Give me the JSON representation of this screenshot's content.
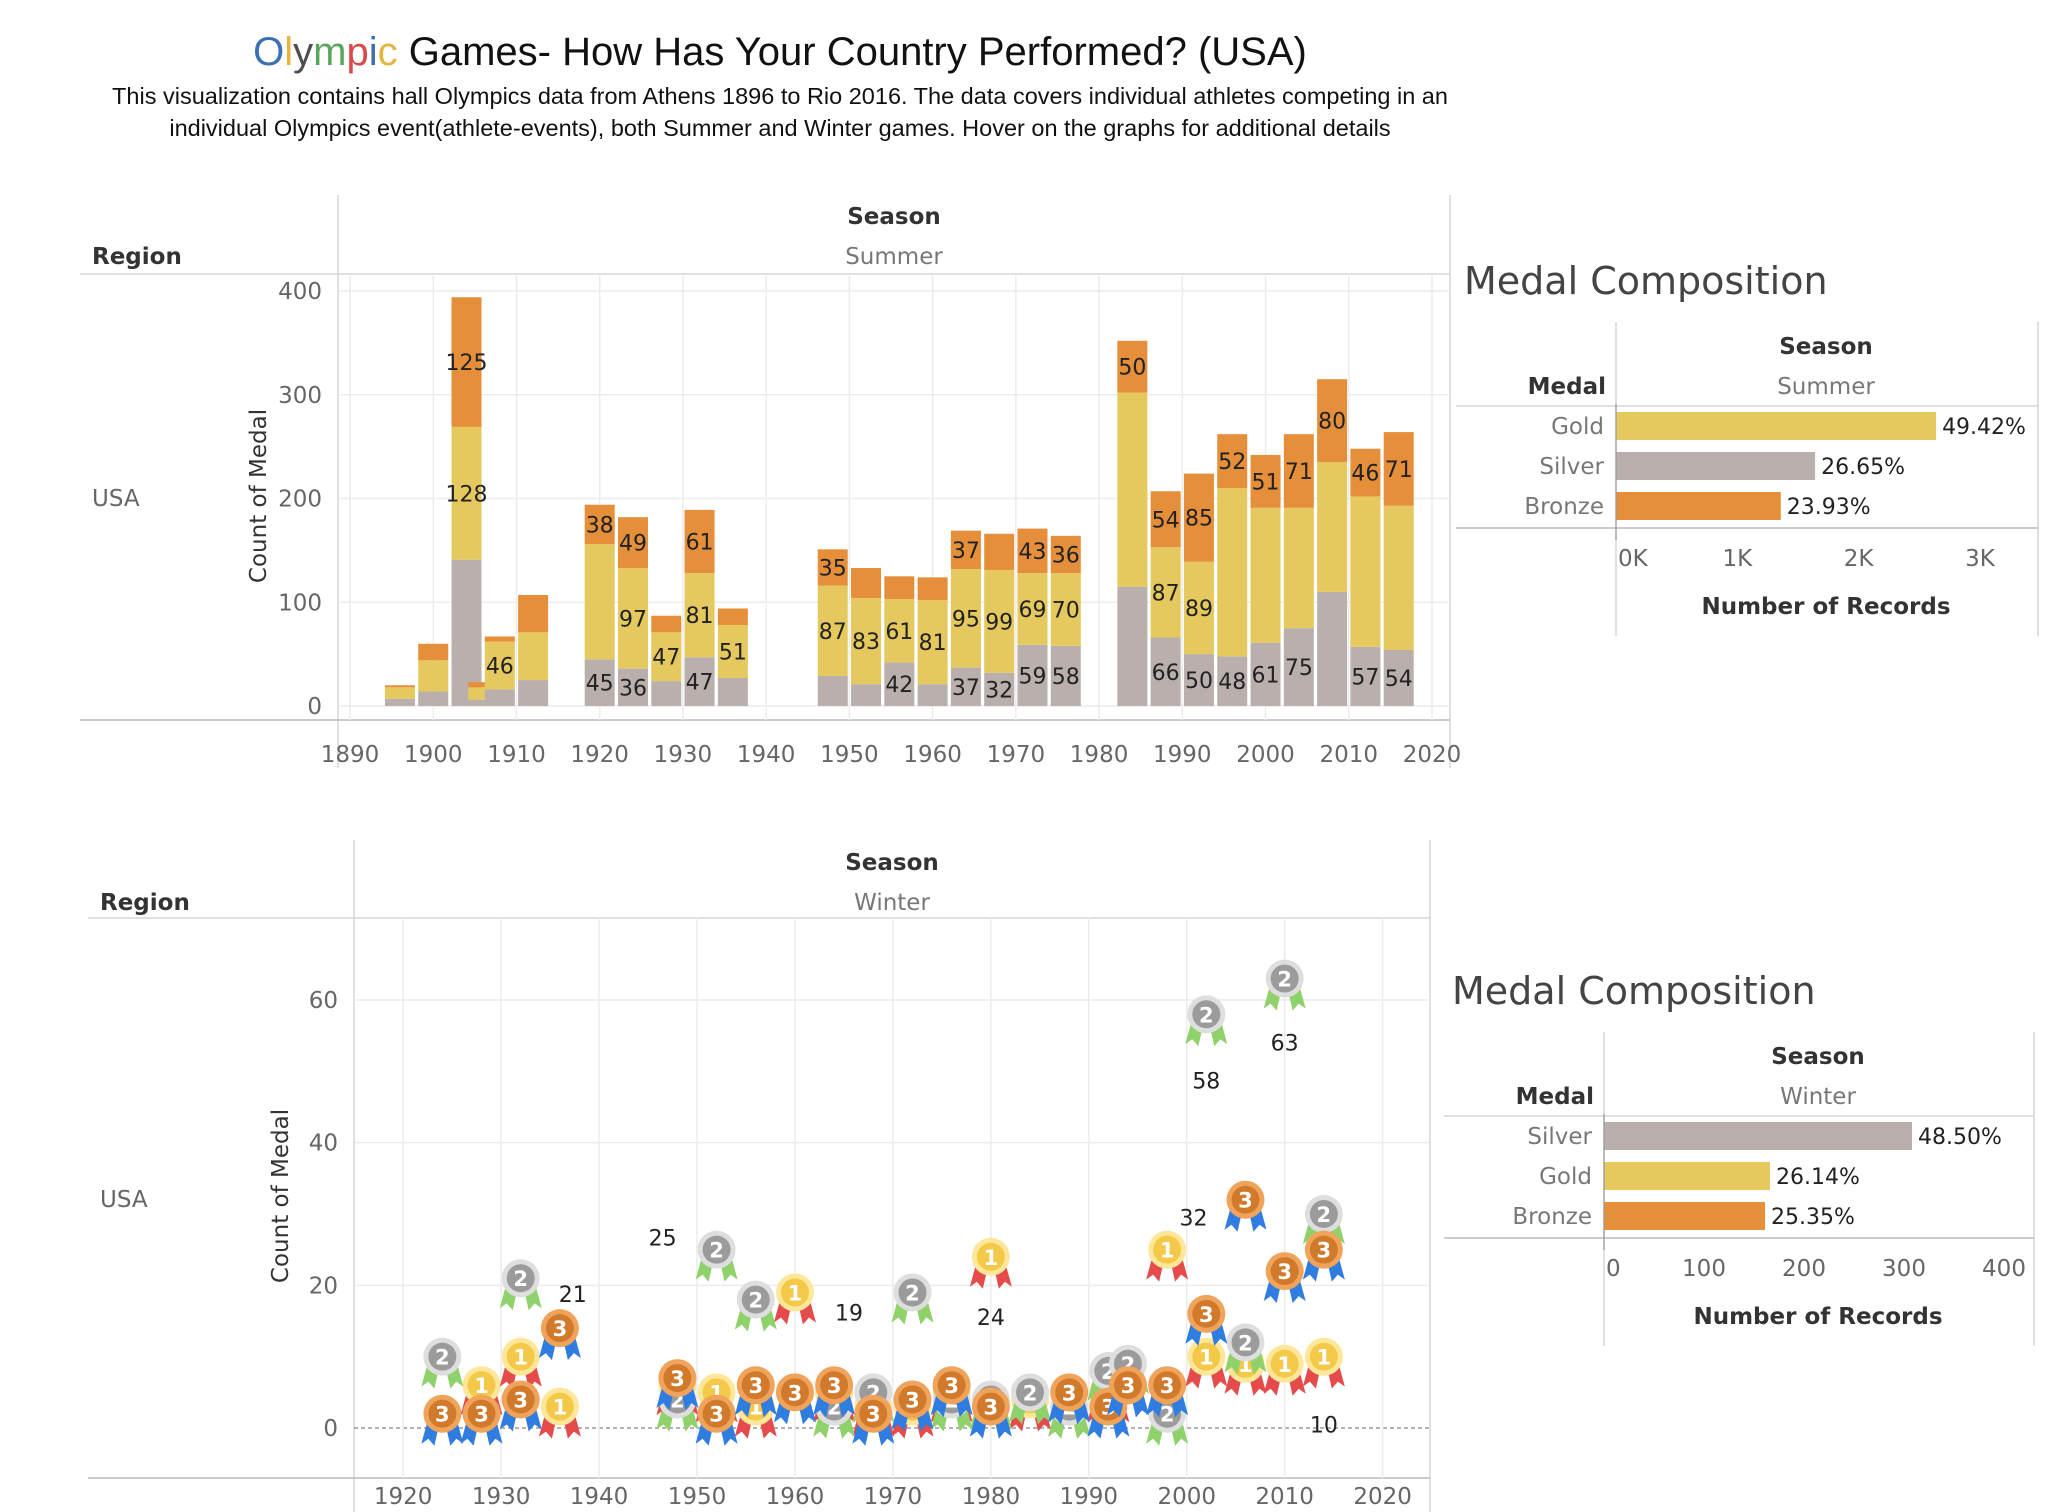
{
  "title": {
    "colored_word_letters": [
      {
        "ch": "O",
        "color": "#3b6fb6"
      },
      {
        "ch": "l",
        "color": "#e8b53c"
      },
      {
        "ch": "y",
        "color": "#4d4d4d"
      },
      {
        "ch": "m",
        "color": "#58a55c"
      },
      {
        "ch": "p",
        "color": "#d94b4b"
      },
      {
        "ch": "i",
        "color": "#3b6fb6"
      },
      {
        "ch": "c",
        "color": "#e8b53c"
      }
    ],
    "rest": " Games- How Has Your Country Performed? (USA)",
    "subtitle": "This visualization contains hall Olympics data from Athens 1896 to Rio 2016. The data covers individual athletes competing in an individual Olympics event(athlete-events), both Summer and Winter games. Hover on the graphs for additional details"
  },
  "colors": {
    "gold": "#e5c95e",
    "silver": "#b9b0ad",
    "bronze": "#e58f3b",
    "grid": "#ececec",
    "axis_text": "#666666",
    "header_text": "#333333"
  },
  "summer_panel": {
    "region_header": "Region",
    "season_header": "Season",
    "season_value": "Summer",
    "row_label": "USA",
    "y_axis_title": "Count of Medal"
  },
  "winter_panel": {
    "region_header": "Region",
    "season_header": "Season",
    "season_value": "Winter",
    "row_label": "USA",
    "y_axis_title": "Count of Medal"
  },
  "summer_composition": {
    "title": "Medal Composition",
    "season_header": "Season",
    "season_value": "Summer",
    "medal_header": "Medal",
    "axis_title": "Number of Records",
    "tick_labels": [
      "0K",
      "1K",
      "2K",
      "3K"
    ],
    "xlim": [
      0,
      3000
    ],
    "bars": [
      {
        "medal": "Gold",
        "value": 2638,
        "pct": "49.42%",
        "color_key": "gold"
      },
      {
        "medal": "Silver",
        "value": 1641,
        "pct": "26.65%",
        "color_key": "silver"
      },
      {
        "medal": "Bronze",
        "value": 1358,
        "pct": "23.93%",
        "color_key": "bronze"
      }
    ]
  },
  "winter_composition": {
    "title": "Medal Composition",
    "season_header": "Season",
    "season_value": "Winter",
    "medal_header": "Medal",
    "axis_title": "Number of Records",
    "tick_labels": [
      "0",
      "100",
      "200",
      "300",
      "400"
    ],
    "xlim": [
      0,
      400
    ],
    "bars": [
      {
        "medal": "Silver",
        "value": 308,
        "pct": "48.50%",
        "color_key": "silver"
      },
      {
        "medal": "Gold",
        "value": 166,
        "pct": "26.14%",
        "color_key": "gold"
      },
      {
        "medal": "Bronze",
        "value": 161,
        "pct": "25.35%",
        "color_key": "bronze"
      }
    ]
  },
  "chart_data": [
    {
      "type": "bar",
      "stacked": true,
      "title": "Summer",
      "xlabel": "",
      "ylabel": "Count of Medal",
      "xlim": [
        1890,
        2020
      ],
      "ylim": [
        0,
        400
      ],
      "x_ticks": [
        1890,
        1900,
        1910,
        1920,
        1930,
        1940,
        1950,
        1960,
        1970,
        1980,
        1990,
        2000,
        2010,
        2020
      ],
      "y_ticks": [
        0,
        100,
        200,
        300,
        400
      ],
      "grid": true,
      "years": [
        1896,
        1900,
        1904,
        1906,
        1908,
        1912,
        1920,
        1924,
        1928,
        1932,
        1936,
        1948,
        1952,
        1956,
        1960,
        1964,
        1968,
        1972,
        1976,
        1984,
        1988,
        1992,
        1996,
        2000,
        2004,
        2008,
        2012,
        2016
      ],
      "series": [
        {
          "color_key": "silver",
          "values": [
            7,
            14,
            141,
            6,
            16,
            25,
            45,
            36,
            24,
            47,
            27,
            29,
            21,
            42,
            21,
            37,
            32,
            59,
            58,
            115,
            66,
            50,
            48,
            61,
            75,
            110,
            57,
            54
          ],
          "labels": [
            "",
            "",
            "",
            "",
            "",
            "",
            "45",
            "36",
            "",
            "47",
            "",
            "",
            "",
            "42",
            "",
            "37",
            "32",
            "59",
            "58",
            "",
            "66",
            "50",
            "48",
            "61",
            "75",
            "",
            "57",
            "54"
          ]
        },
        {
          "color_key": "gold",
          "values": [
            11,
            30,
            128,
            12,
            46,
            46,
            111,
            97,
            47,
            81,
            51,
            87,
            83,
            61,
            81,
            95,
            99,
            69,
            70,
            187,
            87,
            89,
            162,
            130,
            116,
            125,
            145,
            139
          ],
          "labels": [
            "",
            "",
            "128",
            "",
            "46",
            "",
            "",
            "97",
            "47",
            "81",
            "51",
            "87",
            "83",
            "61",
            "81",
            "95",
            "99",
            "69",
            "70",
            "",
            "87",
            "89",
            "",
            "",
            "",
            "",
            "",
            ""
          ]
        },
        {
          "color_key": "bronze",
          "values": [
            2,
            16,
            125,
            5,
            5,
            36,
            38,
            49,
            16,
            61,
            16,
            35,
            29,
            22,
            22,
            37,
            35,
            43,
            36,
            50,
            54,
            85,
            52,
            51,
            71,
            80,
            46,
            71
          ],
          "labels": [
            "",
            "",
            "125",
            "",
            "",
            "",
            "38",
            "49",
            "",
            "61",
            "",
            "35",
            "",
            "",
            "",
            "37",
            "",
            "43",
            "36",
            "50",
            "54",
            "85",
            "52",
            "51",
            "71",
            "80",
            "46",
            "71"
          ]
        }
      ]
    },
    {
      "type": "scatter",
      "title": "Winter",
      "xlabel": "",
      "ylabel": "Count of Medal",
      "xlim": [
        1916,
        2023
      ],
      "ylim": [
        -6,
        70
      ],
      "x_ticks": [
        1920,
        1930,
        1940,
        1950,
        1960,
        1970,
        1980,
        1990,
        2000,
        2010,
        2020
      ],
      "y_ticks": [
        0,
        20,
        40,
        60
      ],
      "grid": true,
      "series": [
        {
          "name": "Gold",
          "medal_number": "1",
          "color_key": "gold",
          "x": [
            1928,
            1932,
            1936,
            1948,
            1952,
            1956,
            1960,
            1964,
            1968,
            1972,
            1976,
            1980,
            1984,
            1988,
            1992,
            1994,
            1998,
            2002,
            2006,
            2010,
            2014
          ],
          "y": [
            6,
            10,
            3,
            6,
            5,
            3,
            19,
            5,
            3,
            3,
            5,
            24,
            4,
            3,
            5,
            6,
            25,
            10,
            9,
            9,
            10
          ],
          "labels": [
            "",
            "",
            "",
            "",
            "",
            "",
            "19",
            "",
            "",
            "",
            "",
            "24",
            "",
            "",
            "",
            "",
            "",
            "",
            "",
            "",
            "10"
          ]
        },
        {
          "name": "Silver",
          "medal_number": "2",
          "color_key": "silver",
          "x": [
            1924,
            1932,
            1948,
            1952,
            1956,
            1964,
            1968,
            1972,
            1976,
            1980,
            1984,
            1988,
            1992,
            1994,
            1998,
            2002,
            2006,
            2010,
            2014
          ],
          "y": [
            10,
            21,
            4,
            25,
            18,
            3,
            5,
            19,
            4,
            4,
            5,
            3,
            8,
            9,
            2,
            58,
            12,
            63,
            30
          ],
          "labels": [
            "",
            "21",
            "",
            "25",
            "",
            "",
            "",
            "",
            "",
            "",
            "",
            "",
            "",
            "",
            "",
            "58",
            "",
            "63",
            ""
          ]
        },
        {
          "name": "Bronze",
          "medal_number": "3",
          "color_key": "bronze",
          "x": [
            1924,
            1928,
            1932,
            1936,
            1948,
            1952,
            1956,
            1960,
            1964,
            1968,
            1972,
            1976,
            1980,
            1988,
            1992,
            1994,
            1998,
            2002,
            2006,
            2010,
            2014
          ],
          "y": [
            2,
            2,
            4,
            14,
            7,
            2,
            6,
            5,
            6,
            2,
            4,
            6,
            3,
            5,
            3,
            6,
            6,
            16,
            32,
            22,
            25
          ],
          "labels": [
            "",
            "",
            "",
            "",
            "",
            "",
            "",
            "",
            "",
            "",
            "",
            "",
            "",
            "",
            "",
            "",
            "",
            "",
            "32",
            "",
            ""
          ]
        }
      ]
    }
  ]
}
